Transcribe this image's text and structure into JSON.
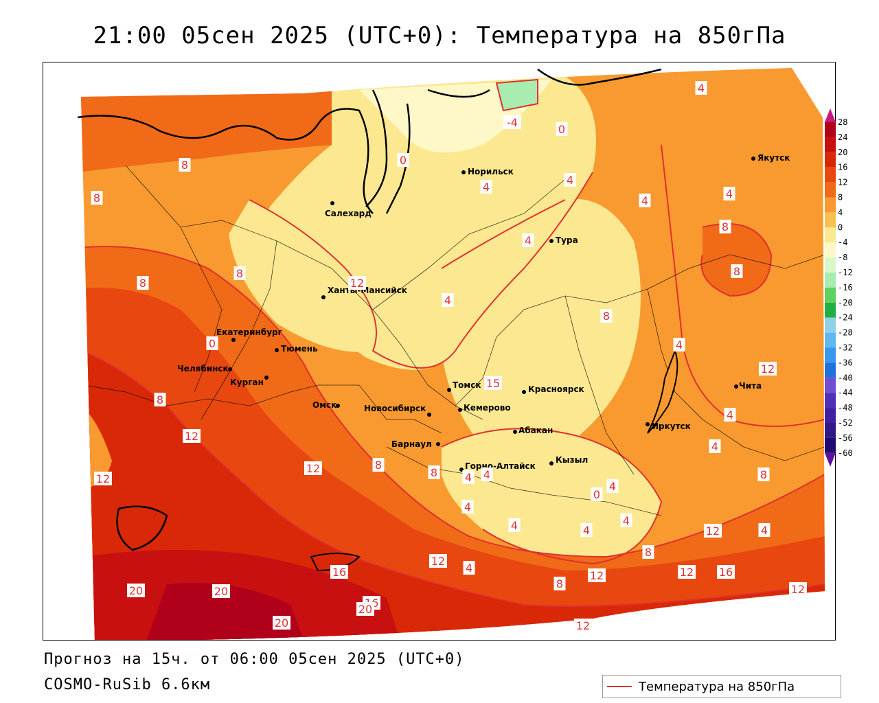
{
  "title": "21:00 05сен 2025 (UTC+0): Температура на 850гПа",
  "forecast_info": "Прогноз на 15ч. от 06:00 05сен 2025 (UTC+0)",
  "model": "COSMO-RuSib 6.6км",
  "legend": {
    "label": "Температура на 850гПа",
    "line_color": "#e03030"
  },
  "colorbar": {
    "ticks": [
      "28",
      "24",
      "20",
      "16",
      "12",
      "8",
      "4",
      "0",
      "-4",
      "-8",
      "-12",
      "-16",
      "-20",
      "-24",
      "-28",
      "-32",
      "-36",
      "-40",
      "-44",
      "-48",
      "-52",
      "-56",
      "-60"
    ],
    "colors": [
      "#b0001a",
      "#c81010",
      "#d82808",
      "#e84810",
      "#f06a18",
      "#f89a30",
      "#f8c050",
      "#fce890",
      "#fef8c8",
      "#d8f8c8",
      "#a8ecb0",
      "#60d060",
      "#20b040",
      "#90d0e8",
      "#60b8f0",
      "#3898f0",
      "#2070e0",
      "#7050d0",
      "#5030b8",
      "#4020a0",
      "#301888",
      "#200c70"
    ],
    "top_arrow_color": "#c81880",
    "bottom_arrow_color": "#6010a0"
  },
  "cities": [
    {
      "name": "Салехард"
    },
    {
      "name": "Норильск"
    },
    {
      "name": "Якутск"
    },
    {
      "name": "Тура"
    },
    {
      "name": "Ханты-Мансийск"
    },
    {
      "name": "Екатеринбург"
    },
    {
      "name": "Тюмень"
    },
    {
      "name": "Челябинск"
    },
    {
      "name": "Курган"
    },
    {
      "name": "Омск"
    },
    {
      "name": "Новосибирск"
    },
    {
      "name": "Томск"
    },
    {
      "name": "Кемерово"
    },
    {
      "name": "Красноярск"
    },
    {
      "name": "Барнаул"
    },
    {
      "name": "Абакан"
    },
    {
      "name": "Горно-Алтайск"
    },
    {
      "name": "Кызыл"
    },
    {
      "name": "Иркутск"
    },
    {
      "name": "Чита"
    }
  ],
  "contour_labels": [
    "4",
    "-4",
    "0",
    "0",
    "8",
    "4",
    "4",
    "4",
    "4",
    "8",
    "8",
    "8",
    "4",
    "8",
    "8",
    "12",
    "4",
    "8",
    "0",
    "8",
    "12",
    "12",
    "4",
    "12",
    "15",
    "4",
    "4",
    "12",
    "8",
    "8",
    "4",
    "0",
    "4",
    "4",
    "4",
    "4",
    "8",
    "8",
    "4",
    "4",
    "12",
    "12",
    "16",
    "12",
    "12",
    "8",
    "16",
    "12",
    "20",
    "20",
    "20",
    "16",
    "20",
    "12",
    "4",
    "4"
  ]
}
